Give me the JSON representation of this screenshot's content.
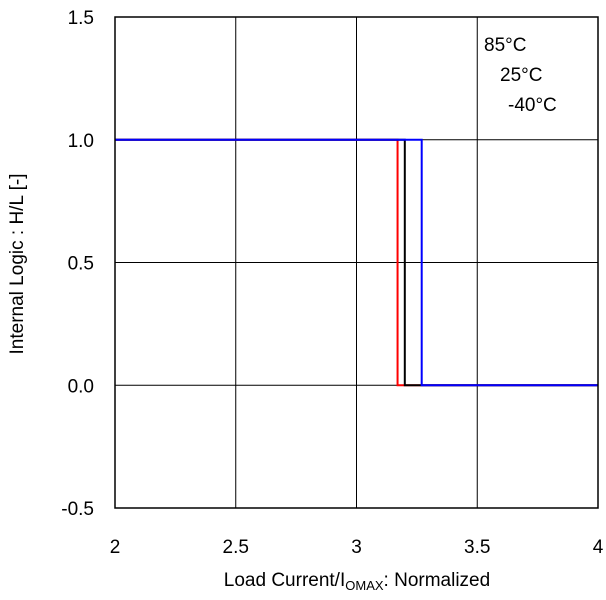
{
  "chart_data": {
    "type": "line",
    "title": "",
    "xlabel": {
      "main": "Load Current/I",
      "subscript": "OMAX",
      "suffix": ": Normalized"
    },
    "ylabel": "Internal Logic : H/L [-]",
    "xlim": [
      2,
      4
    ],
    "ylim": [
      -0.5,
      1.5
    ],
    "x_ticks": [
      2,
      2.5,
      3,
      3.5,
      4
    ],
    "x_tick_labels": [
      "2",
      "2.5",
      "3",
      "3.5",
      "4"
    ],
    "y_ticks": [
      -0.5,
      0.0,
      0.5,
      1.0,
      1.5
    ],
    "y_tick_labels": [
      "-0.5",
      "0.0",
      "0.5",
      "1.0",
      "1.5"
    ],
    "grid": true,
    "legend_placement": "top-right",
    "series": [
      {
        "name": "85°C",
        "color": "#ff0000",
        "x": [
          2,
          3.17,
          3.17,
          4
        ],
        "y": [
          1,
          1,
          0,
          0
        ]
      },
      {
        "name": "25°C",
        "color": "#000000",
        "x": [
          2,
          3.2,
          3.2,
          4
        ],
        "y": [
          1,
          1,
          0,
          0
        ]
      },
      {
        "name": "-40°C",
        "color": "#0000ff",
        "x": [
          2,
          3.27,
          3.27,
          4
        ],
        "y": [
          1,
          1,
          0,
          0
        ]
      }
    ]
  }
}
